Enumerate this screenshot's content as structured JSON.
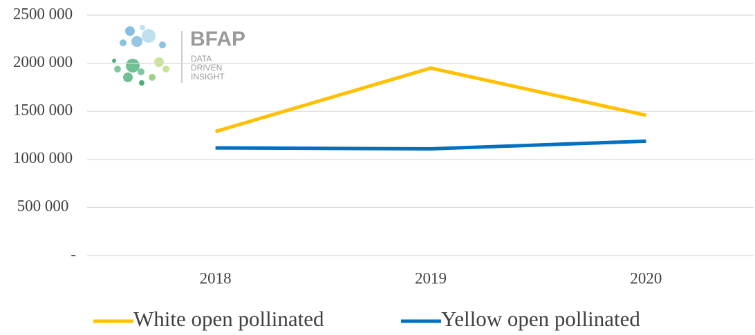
{
  "chart_data": {
    "type": "line",
    "categories": [
      "2018",
      "2019",
      "2020"
    ],
    "series": [
      {
        "name": "White open pollinated",
        "color": "#ffc000",
        "values": [
          1290000,
          1950000,
          1460000
        ]
      },
      {
        "name": "Yellow open pollinated",
        "color": "#0070c0",
        "values": [
          1120000,
          1110000,
          1190000
        ]
      }
    ],
    "ylim": [
      0,
      2500000
    ],
    "yticks": [
      {
        "value": 0,
        "label": "-"
      },
      {
        "value": 500000,
        "label": "500 000"
      },
      {
        "value": 1000000,
        "label": "1000 000"
      },
      {
        "value": 1500000,
        "label": "1500 000"
      },
      {
        "value": 2000000,
        "label": "2000 000"
      },
      {
        "value": 2500000,
        "label": "2500 000"
      }
    ],
    "grid": true,
    "legend": "bottom"
  },
  "logo": {
    "name": "BFAP",
    "tagline": [
      "DATA",
      "DRIVEN",
      "INSIGHT"
    ]
  }
}
